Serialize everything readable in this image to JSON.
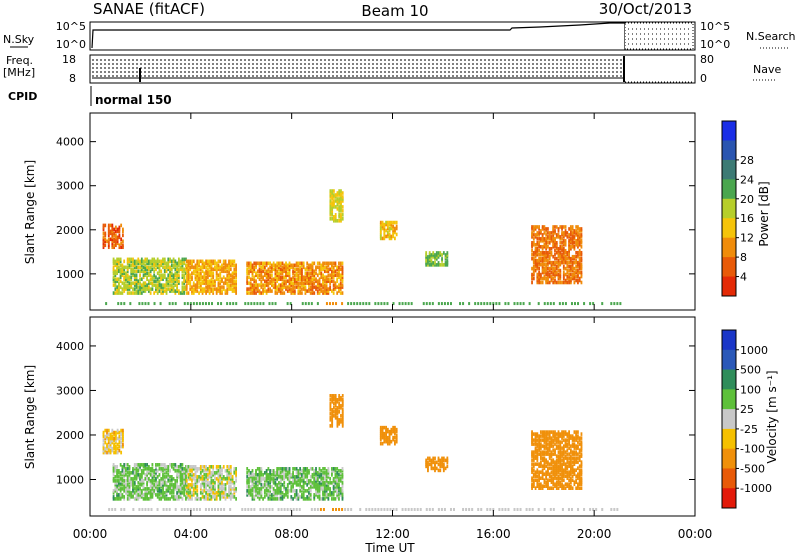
{
  "header": {
    "station": "SANAE (fitACF)",
    "beam": "Beam 10",
    "date": "30/Oct/2013"
  },
  "status_panels": {
    "nsky": {
      "left_label": "N.Sky",
      "left_ticks": [
        "10^5",
        "10^0"
      ],
      "right_label": "N.Search",
      "right_ticks": [
        "10^5",
        "10^0"
      ]
    },
    "freq": {
      "left_label_1": "Freq.",
      "left_label_2": "[MHz]",
      "left_ticks": [
        "18",
        "8"
      ],
      "right_label": "Nave",
      "right_ticks": [
        "80",
        "0"
      ]
    },
    "cpid": {
      "label": "CPID",
      "value": "normal 150"
    }
  },
  "xaxis": {
    "label": "Time UT",
    "ticks": [
      "00:00",
      "04:00",
      "08:00",
      "12:00",
      "16:00",
      "20:00",
      "00:00"
    ],
    "range_hours": [
      0,
      24
    ]
  },
  "power_panel": {
    "ylabel": "Slant Range [km]",
    "yticks": [
      "1000",
      "2000",
      "3000",
      "4000"
    ],
    "yrange_km": [
      180,
      4650
    ],
    "colorbar": {
      "title": "Power [dB]",
      "ticks": [
        "4",
        "8",
        "12",
        "16",
        "20",
        "24",
        "28"
      ],
      "colors": [
        "#1a2ee6",
        "#2a55b0",
        "#3c7a74",
        "#4aa64e",
        "#b6ce2a",
        "#f5c40a",
        "#f08c0a",
        "#e85a08",
        "#e42a06"
      ]
    }
  },
  "velocity_panel": {
    "ylabel": "Slant Range [km]",
    "yticks": [
      "1000",
      "2000",
      "3000",
      "4000"
    ],
    "yrange_km": [
      180,
      4650
    ],
    "colorbar": {
      "title": "Velocity [m s⁻¹]",
      "ticks": [
        "1000",
        "500",
        "100",
        "25",
        "-25",
        "-100",
        "-500",
        "-1000"
      ],
      "colors": [
        "#1a36c8",
        "#2a58b8",
        "#2f8d5a",
        "#5ec03a",
        "#c8c8c8",
        "#f5c000",
        "#f0900a",
        "#e85a08",
        "#e31a0a"
      ]
    }
  },
  "chart_data": [
    {
      "type": "heatmap",
      "name": "Power",
      "x_range_hours": [
        0,
        24
      ],
      "y_range_km": [
        180,
        4650
      ],
      "units": "dB",
      "regions": [
        {
          "x0": 0.9,
          "x1": 3.8,
          "y0": 560,
          "y1": 1350,
          "level": 18
        },
        {
          "x0": 3.8,
          "x1": 5.8,
          "y0": 560,
          "y1": 1300,
          "level": 12
        },
        {
          "x0": 6.2,
          "x1": 10.0,
          "y0": 560,
          "y1": 1250,
          "level": 10
        },
        {
          "x0": 9.5,
          "x1": 10.0,
          "y0": 2200,
          "y1": 2900,
          "level": 16
        },
        {
          "x0": 11.5,
          "x1": 12.2,
          "y0": 1800,
          "y1": 2200,
          "level": 14
        },
        {
          "x0": 13.3,
          "x1": 14.2,
          "y0": 1200,
          "y1": 1500,
          "level": 20
        },
        {
          "x0": 17.5,
          "x1": 19.5,
          "y0": 800,
          "y1": 2100,
          "level": 8
        },
        {
          "x0": 0.5,
          "x1": 1.3,
          "y0": 1600,
          "y1": 2100,
          "level": 6
        }
      ]
    },
    {
      "type": "heatmap",
      "name": "Velocity",
      "x_range_hours": [
        0,
        24
      ],
      "y_range_km": [
        180,
        4650
      ],
      "units": "m/s",
      "regions": [
        {
          "x0": 0.9,
          "x1": 3.8,
          "y0": 560,
          "y1": 1350,
          "level": 50
        },
        {
          "x0": 3.8,
          "x1": 5.8,
          "y0": 560,
          "y1": 1300,
          "level": 0
        },
        {
          "x0": 6.2,
          "x1": 10.0,
          "y0": 560,
          "y1": 1250,
          "level": 60
        },
        {
          "x0": 9.5,
          "x1": 10.0,
          "y0": 2200,
          "y1": 2900,
          "level": -200
        },
        {
          "x0": 11.5,
          "x1": 12.2,
          "y0": 1800,
          "y1": 2200,
          "level": -400
        },
        {
          "x0": 13.3,
          "x1": 14.2,
          "y0": 1200,
          "y1": 1500,
          "level": -200
        },
        {
          "x0": 17.5,
          "x1": 19.5,
          "y0": 800,
          "y1": 2100,
          "level": -200
        },
        {
          "x0": 0.5,
          "x1": 1.3,
          "y0": 1600,
          "y1": 2100,
          "level": -50
        }
      ]
    }
  ]
}
